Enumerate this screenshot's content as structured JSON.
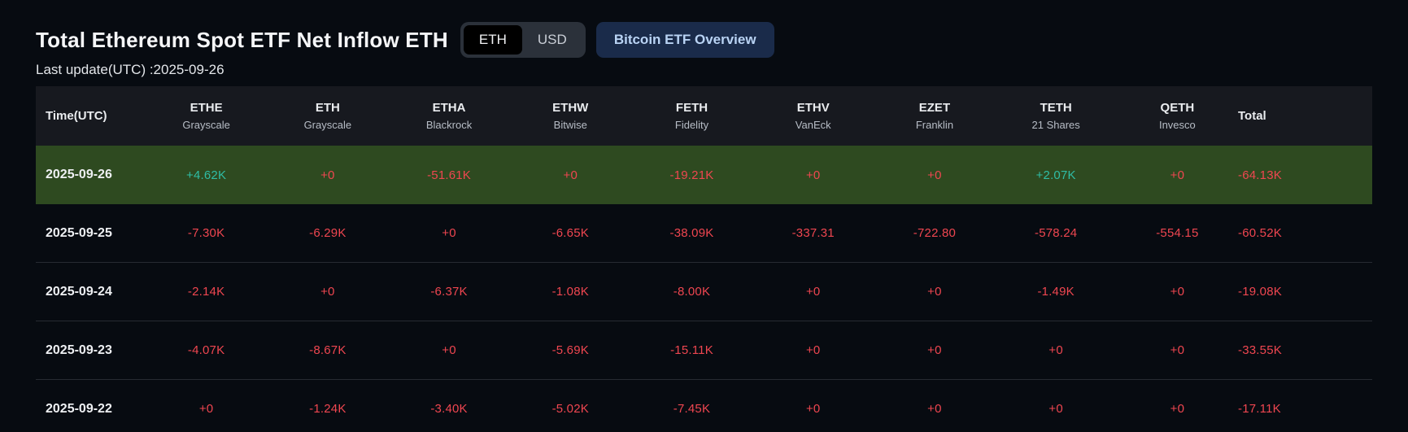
{
  "header": {
    "title": "Total Ethereum Spot ETF Net Inflow ETH",
    "last_update": "Last update(UTC) :2025-09-26",
    "toggle": {
      "options": [
        "ETH",
        "USD"
      ],
      "selected": "ETH"
    },
    "overview_button": "Bitcoin ETF Overview"
  },
  "colors": {
    "positive": "#2fbda5",
    "negative": "#ef4650",
    "highlight_row": "#2e4a20",
    "header_row_bg": "#17191f",
    "page_bg": "#070b11",
    "overview_button_bg": "#1a2b4a",
    "overview_button_text": "#b9d3f4"
  },
  "table": {
    "time_header": "Time(UTC)",
    "total_header": "Total",
    "columns": [
      {
        "ticker": "ETHE",
        "issuer": "Grayscale"
      },
      {
        "ticker": "ETH",
        "issuer": "Grayscale"
      },
      {
        "ticker": "ETHA",
        "issuer": "Blackrock"
      },
      {
        "ticker": "ETHW",
        "issuer": "Bitwise"
      },
      {
        "ticker": "FETH",
        "issuer": "Fidelity"
      },
      {
        "ticker": "ETHV",
        "issuer": "VanEck"
      },
      {
        "ticker": "EZET",
        "issuer": "Franklin"
      },
      {
        "ticker": "TETH",
        "issuer": "21 Shares"
      },
      {
        "ticker": "QETH",
        "issuer": "Invesco"
      }
    ],
    "rows": [
      {
        "date": "2025-09-26",
        "highlight": true,
        "values": [
          {
            "v": "+4.62K",
            "up": true
          },
          {
            "v": "+0",
            "up": false
          },
          {
            "v": "-51.61K",
            "up": false
          },
          {
            "v": "+0",
            "up": false
          },
          {
            "v": "-19.21K",
            "up": false
          },
          {
            "v": "+0",
            "up": false
          },
          {
            "v": "+0",
            "up": false
          },
          {
            "v": "+2.07K",
            "up": true
          },
          {
            "v": "+0",
            "up": false
          }
        ],
        "total": {
          "v": "-64.13K",
          "up": false
        }
      },
      {
        "date": "2025-09-25",
        "highlight": false,
        "values": [
          {
            "v": "-7.30K",
            "up": false
          },
          {
            "v": "-6.29K",
            "up": false
          },
          {
            "v": "+0",
            "up": false
          },
          {
            "v": "-6.65K",
            "up": false
          },
          {
            "v": "-38.09K",
            "up": false
          },
          {
            "v": "-337.31",
            "up": false
          },
          {
            "v": "-722.80",
            "up": false
          },
          {
            "v": "-578.24",
            "up": false
          },
          {
            "v": "-554.15",
            "up": false
          }
        ],
        "total": {
          "v": "-60.52K",
          "up": false
        }
      },
      {
        "date": "2025-09-24",
        "highlight": false,
        "values": [
          {
            "v": "-2.14K",
            "up": false
          },
          {
            "v": "+0",
            "up": false
          },
          {
            "v": "-6.37K",
            "up": false
          },
          {
            "v": "-1.08K",
            "up": false
          },
          {
            "v": "-8.00K",
            "up": false
          },
          {
            "v": "+0",
            "up": false
          },
          {
            "v": "+0",
            "up": false
          },
          {
            "v": "-1.49K",
            "up": false
          },
          {
            "v": "+0",
            "up": false
          }
        ],
        "total": {
          "v": "-19.08K",
          "up": false
        }
      },
      {
        "date": "2025-09-23",
        "highlight": false,
        "values": [
          {
            "v": "-4.07K",
            "up": false
          },
          {
            "v": "-8.67K",
            "up": false
          },
          {
            "v": "+0",
            "up": false
          },
          {
            "v": "-5.69K",
            "up": false
          },
          {
            "v": "-15.11K",
            "up": false
          },
          {
            "v": "+0",
            "up": false
          },
          {
            "v": "+0",
            "up": false
          },
          {
            "v": "+0",
            "up": false
          },
          {
            "v": "+0",
            "up": false
          }
        ],
        "total": {
          "v": "-33.55K",
          "up": false
        }
      },
      {
        "date": "2025-09-22",
        "highlight": false,
        "values": [
          {
            "v": "+0",
            "up": false
          },
          {
            "v": "-1.24K",
            "up": false
          },
          {
            "v": "-3.40K",
            "up": false
          },
          {
            "v": "-5.02K",
            "up": false
          },
          {
            "v": "-7.45K",
            "up": false
          },
          {
            "v": "+0",
            "up": false
          },
          {
            "v": "+0",
            "up": false
          },
          {
            "v": "+0",
            "up": false
          },
          {
            "v": "+0",
            "up": false
          }
        ],
        "total": {
          "v": "-17.11K",
          "up": false
        }
      }
    ]
  }
}
